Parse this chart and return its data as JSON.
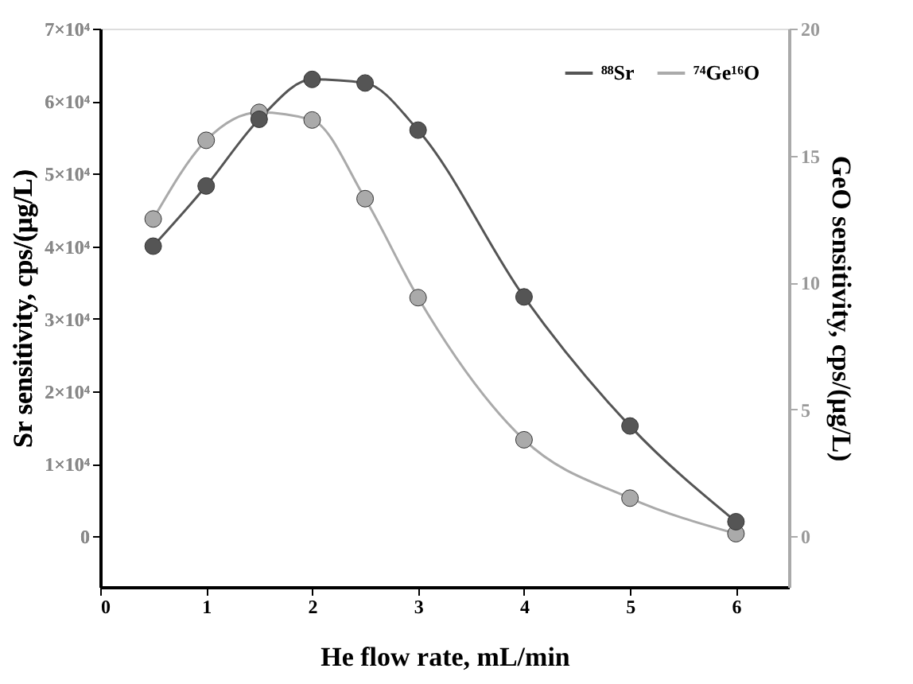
{
  "chart_data": {
    "type": "line",
    "xlabel": "He flow rate, mL/min",
    "ylabel": "Sr sensitivity, cps/(μg/L)",
    "y2label": "GeO sensitivity, cps/(μg/L)",
    "x": [
      0.5,
      1,
      1.5,
      2,
      2.5,
      3,
      4,
      5,
      6
    ],
    "series": [
      {
        "name": "⁸⁸Sr",
        "color": "#555555",
        "values": [
          40000,
          48300,
          57500,
          63000,
          62500,
          56000,
          33000,
          15200,
          2000
        ]
      },
      {
        "name": "⁷⁴Ge¹⁶O",
        "color": "#aaaaaa",
        "axis": "y2",
        "values": [
          12.5,
          15.6,
          16.7,
          16.4,
          13.3,
          9.4,
          3.8,
          1.5,
          0.1
        ]
      }
    ],
    "xlim": [
      0,
      6.5
    ],
    "xticks": [
      0,
      1,
      2,
      3,
      4,
      5,
      6
    ],
    "ylim": [
      -7000,
      70000
    ],
    "yticks": [
      0,
      {
        "value": 10000,
        "label": "1×10⁴"
      },
      {
        "value": 20000,
        "label": "2×10⁴"
      },
      {
        "value": 30000,
        "label": "3×10⁴"
      },
      {
        "value": 40000,
        "label": "4×10⁴"
      },
      {
        "value": 50000,
        "label": "5×10⁴"
      },
      {
        "value": 60000,
        "label": "6×10⁴"
      },
      {
        "value": 70000,
        "label": "7×10⁴"
      }
    ],
    "y2lim": [
      -2,
      20
    ],
    "y2ticks": [
      0,
      5,
      10,
      15,
      20
    ],
    "grid": false,
    "legend": "top right",
    "marker": "circle",
    "line_style": "solid"
  }
}
